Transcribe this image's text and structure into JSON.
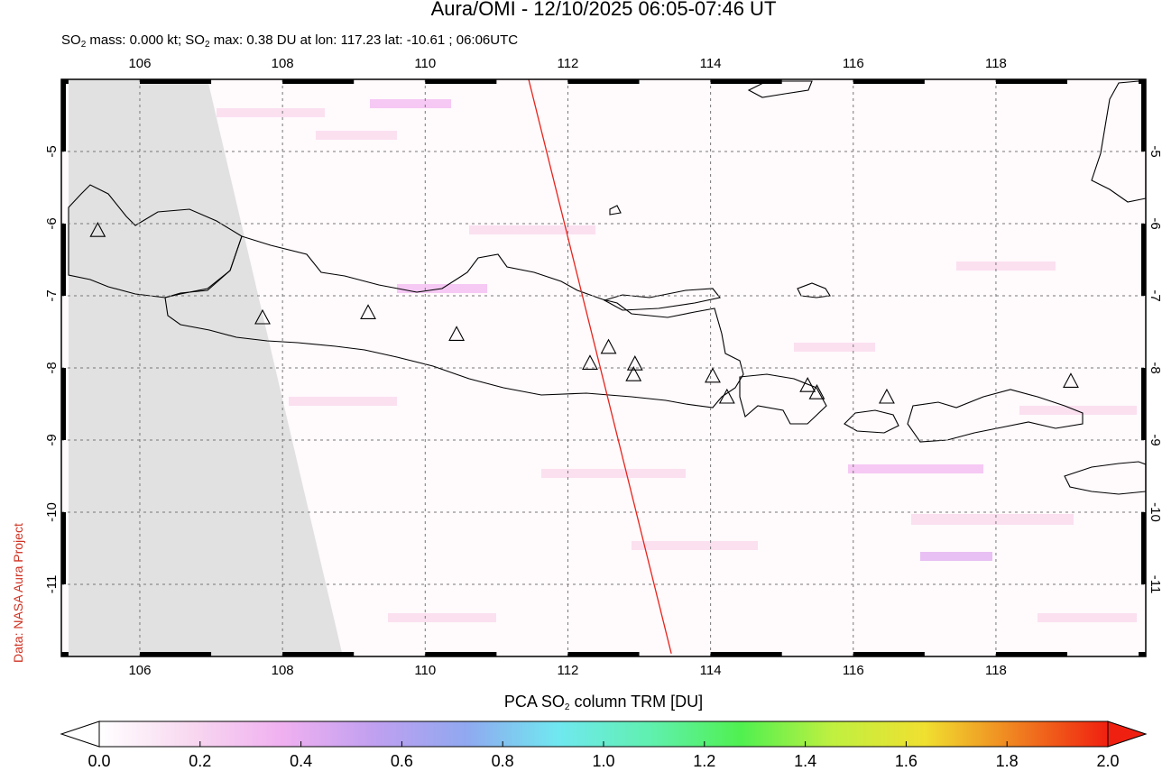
{
  "header": {
    "title": "Aura/OMI - 12/10/2025 06:05-07:46 UT",
    "subtitle_parts": [
      "SO",
      "2",
      " mass: 0.000 kt; SO",
      "2",
      " max: 0.38 DU at lon: 117.23 lat: -10.61 ; 06:06UTC"
    ]
  },
  "credit": "Data: NASA Aura Project",
  "map": {
    "xlim": [
      104.9,
      120.1
    ],
    "ylim": [
      -12,
      -4
    ],
    "xticks": [
      106,
      108,
      110,
      112,
      114,
      116,
      118
    ],
    "yticks": [
      -5,
      -6,
      -7,
      -8,
      -9,
      -10,
      -11
    ],
    "grid": true,
    "volcanoes": {
      "lon": [
        105.41,
        107.72,
        109.2,
        110.44,
        112.31,
        112.57,
        112.94,
        112.92,
        114.03,
        114.23,
        115.36,
        115.49,
        116.47,
        119.05
      ],
      "lat": [
        -6.09,
        -7.3,
        -7.23,
        -7.53,
        -7.93,
        -7.71,
        -7.94,
        -8.09,
        -8.11,
        -8.4,
        -8.24,
        -8.34,
        -8.4,
        -8.18
      ]
    },
    "orbit_track": {
      "lon": [
        111.45,
        113.45
      ],
      "lat": [
        -4,
        -11.96
      ],
      "color": "#e8231b"
    }
  },
  "colorbar": {
    "label_parts": [
      "PCA SO",
      "2",
      " column TRM [DU]"
    ],
    "lim": [
      0,
      2
    ],
    "ticks": [
      {
        "value": 0,
        "label": "0.0"
      },
      {
        "value": 0.2,
        "label": "0.2"
      },
      {
        "value": 0.4,
        "label": "0.4"
      },
      {
        "value": 0.6,
        "label": "0.6"
      },
      {
        "value": 0.8,
        "label": "0.8"
      },
      {
        "value": 1,
        "label": "1.0"
      },
      {
        "value": 1.2,
        "label": "1.2"
      },
      {
        "value": 1.4,
        "label": "1.4"
      },
      {
        "value": 1.6,
        "label": "1.6"
      },
      {
        "value": 1.8,
        "label": "1.8"
      },
      {
        "value": 2,
        "label": "2.0"
      }
    ],
    "colors": [
      "#ffffff",
      "#f8d8f0",
      "#f0b0f0",
      "#c0a0f0",
      "#90a8f0",
      "#70e8f0",
      "#60f0b0",
      "#50f050",
      "#c0f040",
      "#f0e030",
      "#f08020",
      "#f02010"
    ]
  }
}
